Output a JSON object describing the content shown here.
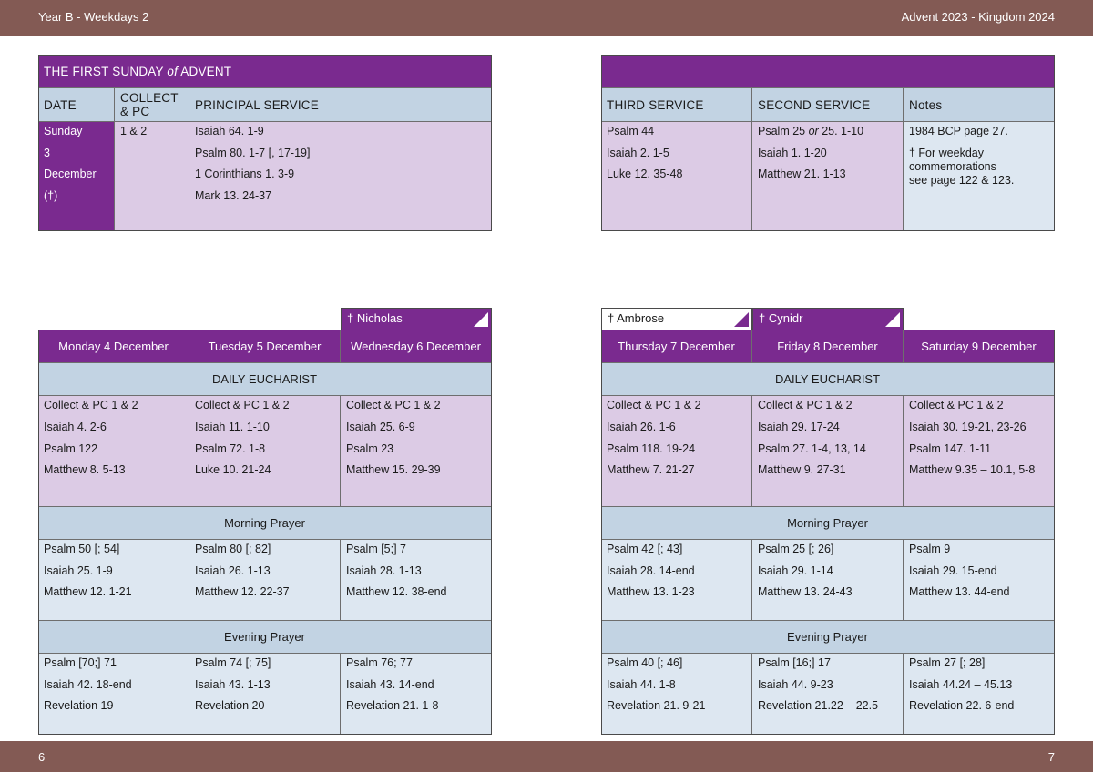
{
  "header": {
    "left": "Year B - Weekdays 2",
    "right": "Advent  2023 - Kingdom 2024"
  },
  "footer": {
    "left_page": "6",
    "right_page": "7"
  },
  "sunday": {
    "title_pre": "THE FIRST SUNDAY ",
    "title_of": "of",
    "title_post": " ADVENT",
    "headers": {
      "date": "DATE",
      "collect1": "COLLECT",
      "collect2": "& PC",
      "principal": "PRINCIPAL SERVICE",
      "third": "THIRD SERVICE",
      "second": "SECOND SERVICE",
      "notes": "Notes"
    },
    "date_lines": [
      "Sunday",
      "3",
      "December",
      "(†)"
    ],
    "collect": "1 & 2",
    "principal": [
      "Isaiah 64. 1-9",
      "Psalm 80. 1-7 [, 17-19]",
      "1 Corinthians 1. 3-9",
      "Mark 13. 24-37"
    ],
    "third": [
      "Psalm 44",
      "Isaiah 2. 1-5",
      "Luke 12. 35-48"
    ],
    "second_pre": "Psalm 25 ",
    "second_or": "or",
    "second_post": " 25. 1-10",
    "second": [
      "Isaiah 1. 1-20",
      "Matthew 21. 1-13"
    ],
    "notes": [
      "1984 BCP page 27.",
      "† For weekday",
      "commemorations",
      "see page 122 & 123."
    ]
  },
  "weekdays_left": {
    "tabs": [
      "† Nicholas"
    ],
    "days": [
      "Monday 4 December",
      "Tuesday 5 December",
      "Wednesday 6 December"
    ],
    "sections": {
      "eucharist": "DAILY EUCHARIST",
      "morning": "Morning Prayer",
      "evening": "Evening Prayer"
    },
    "eucharist": [
      [
        "Collect & PC 1 & 2",
        "Isaiah 4. 2-6",
        "Psalm 122",
        "Matthew 8. 5-13"
      ],
      [
        "Collect & PC 1 & 2",
        "Isaiah 11. 1-10",
        "Psalm 72. 1-8",
        "Luke 10. 21-24"
      ],
      [
        "Collect & PC 1 & 2",
        "Isaiah 25. 6-9",
        "Psalm 23",
        "Matthew 15. 29-39"
      ]
    ],
    "morning": [
      [
        "Psalm 50 [; 54]",
        "Isaiah 25. 1-9",
        "Matthew 12. 1-21"
      ],
      [
        "Psalm 80 [; 82]",
        "Isaiah 26. 1-13",
        "Matthew 12. 22-37"
      ],
      [
        "Psalm [5;] 7",
        "Isaiah 28. 1-13",
        "Matthew 12. 38-end"
      ]
    ],
    "evening": [
      [
        "Psalm [70;] 71",
        "Isaiah 42. 18-end",
        "Revelation 19"
      ],
      [
        "Psalm 74 [; 75]",
        "Isaiah 43. 1-13",
        "Revelation 20"
      ],
      [
        "Psalm 76; 77",
        "Isaiah 43. 14-end",
        "Revelation 21. 1-8"
      ]
    ]
  },
  "weekdays_right": {
    "tabs": [
      "† Ambrose",
      "† Cynidr"
    ],
    "days": [
      "Thursday 7 December",
      "Friday 8 December",
      "Saturday 9 December"
    ],
    "sections": {
      "eucharist": "DAILY EUCHARIST",
      "morning": "Morning Prayer",
      "evening": "Evening Prayer"
    },
    "eucharist": [
      [
        "Collect & PC 1 & 2",
        "Isaiah 26. 1-6",
        "Psalm 118. 19-24",
        "Matthew 7. 21-27"
      ],
      [
        "Collect & PC 1 & 2",
        "Isaiah 29. 17-24",
        "Psalm 27. 1-4, 13, 14",
        "Matthew 9. 27-31"
      ],
      [
        "Collect & PC 1 & 2",
        "Isaiah 30. 19-21, 23-26",
        "Psalm 147. 1-11",
        "Matthew 9.35 – 10.1, 5-8"
      ]
    ],
    "morning": [
      [
        "Psalm 42 [; 43]",
        "Isaiah 28. 14-end",
        "Matthew 13. 1-23"
      ],
      [
        "Psalm 25 [; 26]",
        "Isaiah 29. 1-14",
        "Matthew 13. 24-43"
      ],
      [
        "Psalm 9",
        "Isaiah 29. 15-end",
        "Matthew 13. 44-end"
      ]
    ],
    "evening": [
      [
        "Psalm 40 [; 46]",
        "Isaiah 44. 1-8",
        "Revelation 21. 9-21"
      ],
      [
        "Psalm [16;] 17",
        "Isaiah 44. 9-23",
        "Revelation 21.22 – 22.5"
      ],
      [
        "Psalm 27 [; 28]",
        "Isaiah 44.24 – 45.13",
        "Revelation 22. 6-end"
      ]
    ]
  }
}
